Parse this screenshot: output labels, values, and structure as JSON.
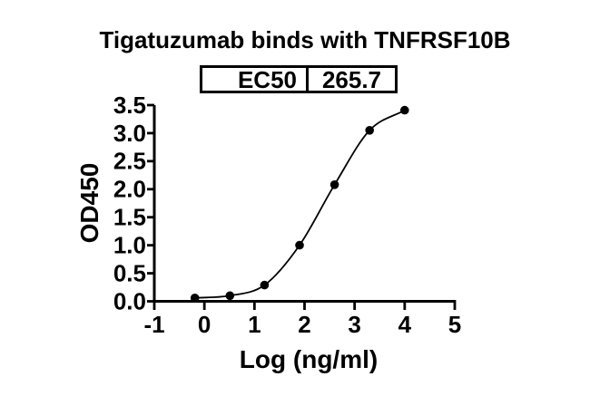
{
  "chart_data": {
    "type": "scatter",
    "title": "Tigatuzumab binds with TNFRSF10B",
    "xlabel": "Log (ng/ml)",
    "ylabel": "OD450",
    "xlim": [
      -1,
      5
    ],
    "ylim": [
      0,
      3.5
    ],
    "x_tick_values": [
      -1,
      0,
      1,
      2,
      3,
      4,
      5
    ],
    "x_tick_labels": [
      "-1",
      "0",
      "1",
      "2",
      "3",
      "4",
      "5"
    ],
    "y_tick_values": [
      0,
      0.5,
      1,
      1.5,
      2,
      2.5,
      3,
      3.5
    ],
    "y_tick_labels": [
      "0.0",
      "0.5",
      "1.0",
      "1.5",
      "2.0",
      "2.5",
      "3.0",
      "3.5"
    ],
    "grid": false,
    "legend": "none",
    "axis_color": "#000000",
    "background_color": "#ffffff",
    "series": [
      {
        "marker": "filled-circle",
        "color": "#000000",
        "fit_curve": "sigmoidal-dose-response",
        "x": [
          -0.19,
          0.51,
          1.2,
          1.9,
          2.6,
          3.3,
          4.0
        ],
        "y": [
          0.06,
          0.1,
          0.29,
          1.0,
          2.08,
          3.05,
          3.41
        ]
      }
    ],
    "ec50_table": {
      "label": "EC50",
      "value": "265.7"
    }
  }
}
